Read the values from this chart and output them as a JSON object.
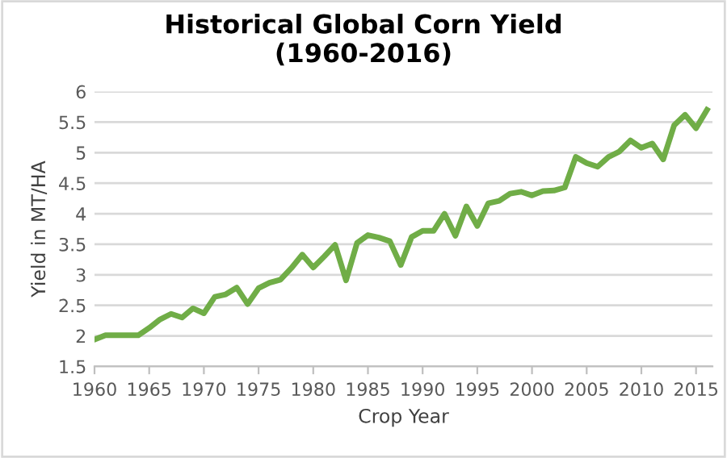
{
  "chart_data": {
    "type": "line",
    "title": "Historical Global Corn Yield\n(1960-2016)",
    "xlabel": "Crop Year",
    "ylabel": "Yield in MT/HA",
    "x": [
      1960,
      1961,
      1962,
      1963,
      1964,
      1965,
      1966,
      1967,
      1968,
      1969,
      1970,
      1971,
      1972,
      1973,
      1974,
      1975,
      1976,
      1977,
      1978,
      1979,
      1980,
      1981,
      1982,
      1983,
      1984,
      1985,
      1986,
      1987,
      1988,
      1989,
      1990,
      1991,
      1992,
      1993,
      1994,
      1995,
      1996,
      1997,
      1998,
      1999,
      2000,
      2001,
      2002,
      2003,
      2004,
      2005,
      2006,
      2007,
      2008,
      2009,
      2010,
      2011,
      2012,
      2013,
      2014,
      2015,
      2016
    ],
    "series": [
      {
        "color": "#70ad47",
        "values": [
          1.94,
          2.01,
          2.01,
          2.01,
          2.01,
          2.13,
          2.27,
          2.36,
          2.3,
          2.45,
          2.37,
          2.64,
          2.68,
          2.79,
          2.52,
          2.78,
          2.87,
          2.92,
          3.11,
          3.33,
          3.12,
          3.3,
          3.49,
          2.91,
          3.52,
          3.65,
          3.61,
          3.55,
          3.16,
          3.62,
          3.72,
          3.72,
          4.0,
          3.64,
          4.12,
          3.8,
          4.17,
          4.21,
          4.33,
          4.36,
          4.3,
          4.37,
          4.38,
          4.43,
          4.93,
          4.83,
          4.77,
          4.93,
          5.02,
          5.2,
          5.08,
          5.15,
          4.89,
          5.45,
          5.62,
          5.4,
          5.7
        ]
      }
    ],
    "xlim": [
      1960,
      2016.5
    ],
    "xticks": [
      1960,
      1965,
      1970,
      1975,
      1980,
      1985,
      1990,
      1995,
      2000,
      2005,
      2010,
      2015
    ],
    "ylim": [
      1.5,
      6
    ],
    "yticks": [
      1.5,
      2,
      2.5,
      3,
      3.5,
      4,
      4.5,
      5,
      5.5,
      6
    ],
    "grid": "y",
    "legend": false,
    "marker": "none",
    "line_style": "solid"
  }
}
